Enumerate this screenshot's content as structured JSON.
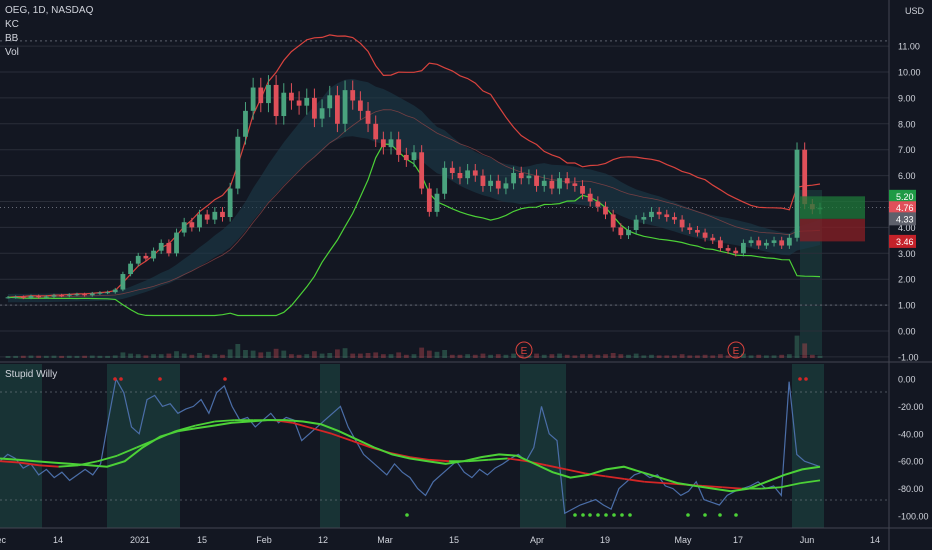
{
  "header": {
    "symbol_line": "OEG, 1D, NASDAQ",
    "indicators": [
      "KC",
      "BB",
      "Vol"
    ],
    "currency": "USD"
  },
  "oscillator": {
    "name": "Stupid Willy"
  },
  "colors": {
    "background": "#131722",
    "up": "#4aa37e",
    "down": "#e0505a",
    "upper_band": "#d9433e",
    "lower_band": "#4cd137",
    "kc_fill": "#1c3a4a",
    "willy_line": "#4b6ea8",
    "signal_up": "#4cd137",
    "signal_down": "#d42626",
    "highlight": "#1d4a45",
    "grid": "#2a2e39"
  },
  "chart_data": [
    {
      "type": "candlestick",
      "title": "OEG, 1D, NASDAQ",
      "ylim": [
        -1,
        12
      ],
      "yticks": [
        "-1.00",
        "0.00",
        "1.00",
        "2.00",
        "3.00",
        "4.00",
        "5.00",
        "6.00",
        "7.00",
        "8.00",
        "9.00",
        "10.00",
        "11.00"
      ],
      "xticks": [
        "Dec",
        "14",
        "2021",
        "15",
        "Feb",
        "12",
        "Mar",
        "15",
        "Apr",
        "19",
        "May",
        "17",
        "Jun",
        "14"
      ],
      "x_range": [
        "2020-12-03",
        "2021-06-19"
      ],
      "ohlc_close": [
        1.3,
        1.32,
        1.28,
        1.35,
        1.3,
        1.33,
        1.38,
        1.36,
        1.4,
        1.42,
        1.38,
        1.45,
        1.48,
        1.5,
        1.6,
        2.2,
        2.6,
        2.9,
        2.8,
        3.1,
        3.4,
        3.0,
        3.8,
        4.2,
        4.0,
        4.5,
        4.3,
        4.6,
        4.4,
        5.5,
        7.5,
        8.5,
        9.4,
        8.8,
        9.5,
        8.3,
        9.2,
        8.9,
        8.7,
        9.0,
        8.2,
        8.6,
        9.1,
        8.0,
        9.3,
        8.9,
        8.5,
        8.0,
        7.4,
        7.1,
        7.4,
        6.8,
        6.6,
        6.9,
        5.5,
        4.6,
        5.3,
        6.3,
        6.1,
        5.9,
        6.2,
        6.0,
        5.6,
        5.8,
        5.5,
        5.7,
        6.1,
        5.9,
        6.0,
        5.6,
        5.8,
        5.5,
        5.9,
        5.7,
        5.6,
        5.3,
        5.0,
        4.8,
        4.5,
        4.0,
        3.7,
        3.9,
        4.3,
        4.4,
        4.6,
        4.5,
        4.4,
        4.3,
        4.0,
        3.9,
        3.8,
        3.6,
        3.5,
        3.2,
        3.1,
        3.0,
        3.4,
        3.5,
        3.3,
        3.4,
        3.5,
        3.3,
        3.6,
        7.0,
        4.9,
        4.7,
        4.76
      ],
      "last_price": 4.76,
      "price_labels": [
        "5.20",
        "4.76",
        "4.33",
        "3.46"
      ],
      "position_box": {
        "entry": 4.33,
        "target": 5.2,
        "stop": 3.46
      },
      "annotations": [
        "E",
        "E"
      ]
    },
    {
      "type": "line",
      "title": "Stupid Willy",
      "ylim": [
        -110,
        5
      ],
      "yticks": [
        "0.00",
        "-20.00",
        "-40.00",
        "-60.00",
        "-80.00",
        "-100.00"
      ],
      "series": [
        {
          "values": [
            -60,
            -55,
            -58,
            -65,
            -62,
            -70,
            -66,
            -72,
            -68,
            -74,
            -70,
            -66,
            -70,
            -62,
            -30,
            0,
            -10,
            -35,
            -40,
            -15,
            -12,
            -20,
            -18,
            -25,
            -22,
            -20,
            -15,
            -25,
            -10,
            -5,
            -20,
            -30,
            -28,
            -35,
            -30,
            -25,
            -32,
            -28,
            -30,
            -45,
            -40,
            -35,
            -30,
            -25,
            -20,
            -35,
            -45,
            -55,
            -60,
            -65,
            -70,
            -62,
            -68,
            -72,
            -80,
            -85,
            -75,
            -70,
            -65,
            -60,
            -68,
            -72,
            -66,
            -70,
            -65,
            -62,
            -58,
            -55,
            -60,
            -50,
            -20,
            -40,
            -45,
            -98,
            -95,
            -92,
            -90,
            -88,
            -92,
            -95,
            -80,
            -75,
            -70,
            -68,
            -72,
            -70,
            -78,
            -80,
            -85,
            -82,
            -75,
            -88,
            -90,
            -92,
            -85,
            -82,
            -80,
            -78,
            -75,
            -80,
            -78,
            -85,
            -2,
            -55,
            -60,
            -62,
            -64
          ]
        },
        {
          "values": [
            -58,
            -59,
            -60,
            -61,
            -62,
            -63,
            -64,
            -60,
            -50,
            -42,
            -38,
            -36,
            -34,
            -32,
            -31,
            -30,
            -30,
            -31,
            -33,
            -38,
            -44,
            -50,
            -55,
            -58,
            -60,
            -62,
            -60,
            -57,
            -55,
            -56,
            -62,
            -68,
            -72,
            -70,
            -66,
            -64,
            -68,
            -72,
            -76,
            -78,
            -80,
            -82,
            -80,
            -75,
            -70,
            -66,
            -64
          ]
        },
        {
          "values": [
            -60,
            -61,
            -63,
            -64,
            -63,
            -60,
            -56,
            -50,
            -44,
            -38,
            -34,
            -31,
            -30,
            -30,
            -30,
            -32,
            -36,
            -40,
            -45,
            -50,
            -54,
            -57,
            -59,
            -60,
            -60,
            -59,
            -58,
            -60,
            -63,
            -66,
            -69,
            -71,
            -73,
            -75,
            -76,
            -77,
            -78,
            -79,
            -80,
            -80,
            -79,
            -76,
            -74
          ]
        }
      ]
    }
  ]
}
